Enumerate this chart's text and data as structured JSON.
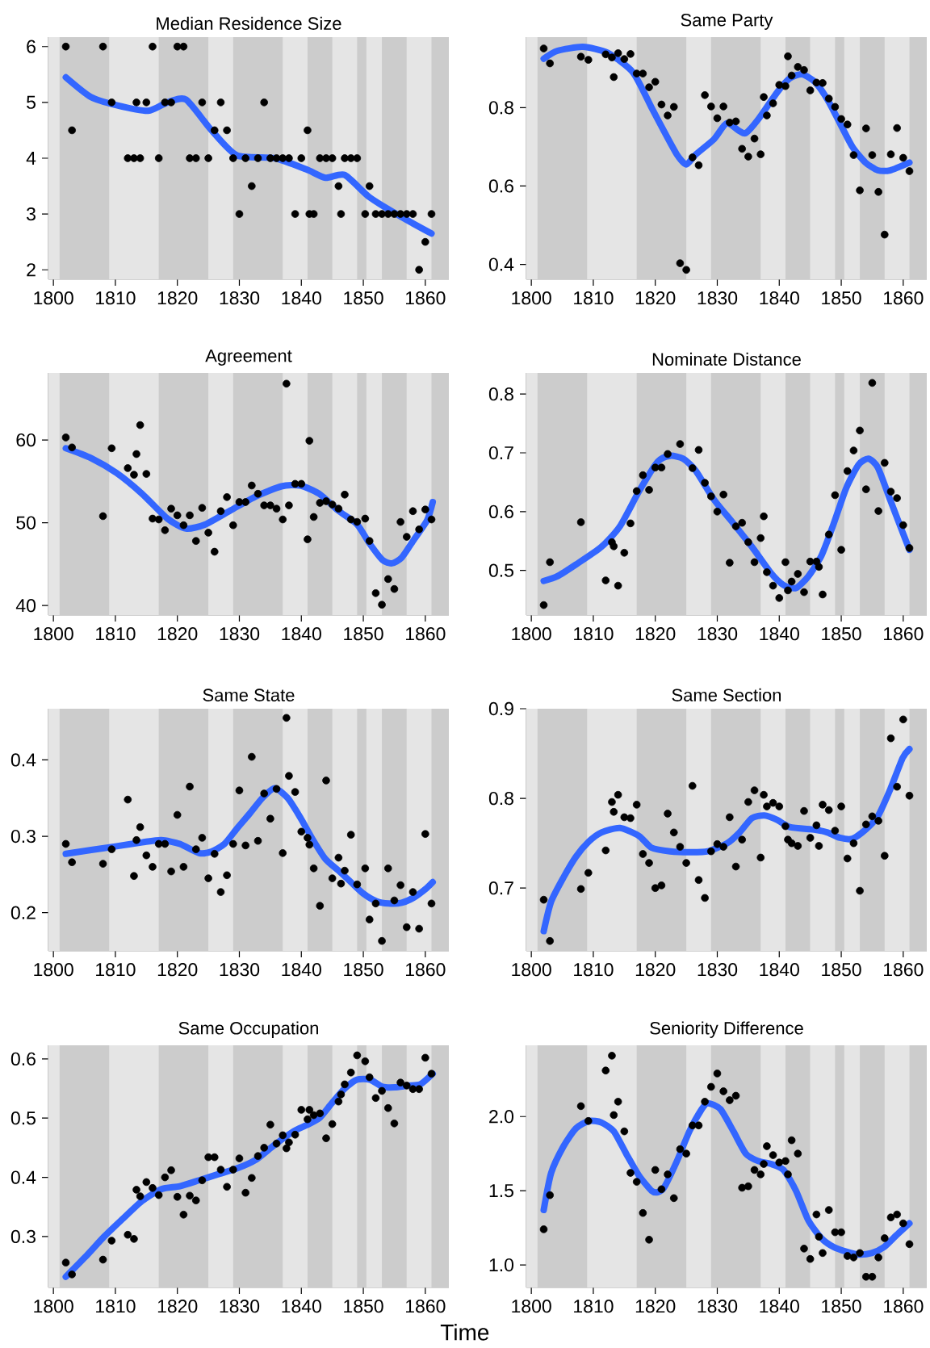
{
  "chart_data": [
    {
      "type": "scatter",
      "title": "Median Residence Size",
      "xlim": [
        1799.2,
        1863.8
      ],
      "ylim": [
        1.83,
        6.17
      ],
      "xticks": [
        1800,
        1810,
        1820,
        1830,
        1840,
        1850,
        1860
      ],
      "yticks": [
        2,
        3,
        4,
        5,
        6
      ],
      "bands": [
        {
          "axis": "x",
          "from": 1801,
          "to": 1809,
          "color": "#cccccc"
        },
        {
          "axis": "x",
          "from": 1817,
          "to": 1825,
          "color": "#cccccc"
        },
        {
          "axis": "x",
          "from": 1829,
          "to": 1837,
          "color": "#cccccc"
        },
        {
          "axis": "x",
          "from": 1841,
          "to": 1845,
          "color": "#cccccc"
        },
        {
          "axis": "x",
          "from": 1849,
          "to": 1850.5,
          "color": "#cccccc"
        },
        {
          "axis": "x",
          "from": 1853,
          "to": 1857,
          "color": "#cccccc"
        },
        {
          "axis": "x",
          "from": 1861,
          "to": 1863.8,
          "color": "#cccccc"
        }
      ],
      "series": [
        {
          "type": "scatter",
          "color": "#000000",
          "marker": "circle",
          "x": [
            1802,
            1803,
            1808,
            1809.4,
            1812,
            1813,
            1813.4,
            1814,
            1815,
            1816,
            1817,
            1818,
            1819,
            1820,
            1821,
            1822,
            1823,
            1824,
            1825,
            1826,
            1827,
            1828,
            1829,
            1830,
            1831,
            1832,
            1833,
            1834,
            1835,
            1836,
            1837,
            1838,
            1839,
            1840,
            1841,
            1841.3,
            1842,
            1843,
            1844,
            1845,
            1846,
            1846.4,
            1847,
            1848,
            1849,
            1850.3,
            1851,
            1852,
            1853,
            1854,
            1855,
            1856,
            1857,
            1858,
            1859,
            1860,
            1861
          ],
          "values": [
            6,
            4.5,
            6,
            5,
            4,
            4,
            5,
            4,
            5,
            6,
            4,
            5,
            5,
            6,
            6,
            4,
            4,
            5,
            4,
            4.5,
            5,
            4.5,
            4,
            3,
            4,
            3.5,
            4,
            5,
            4,
            4,
            4,
            4,
            3,
            4,
            4.5,
            3,
            3,
            4,
            4,
            4,
            3.5,
            3,
            4,
            4,
            4,
            3,
            3.5,
            3,
            3,
            3,
            3,
            3,
            3,
            3,
            2,
            2.5,
            3
          ]
        },
        {
          "type": "line",
          "color": "#3366ff",
          "x": [
            1802,
            1806,
            1810.2,
            1815.3,
            1818.4,
            1821.4,
            1825.5,
            1829.6,
            1835.7,
            1840.8,
            1843.9,
            1847,
            1851,
            1856.1,
            1861
          ],
          "values": [
            5.45,
            5.1,
            4.95,
            4.85,
            5.0,
            5.05,
            4.5,
            4.05,
            4.0,
            3.8,
            3.65,
            3.7,
            3.3,
            2.95,
            2.65
          ]
        }
      ]
    },
    {
      "type": "scatter",
      "title": "Same Party",
      "xlim": [
        1799.2,
        1863.8
      ],
      "ylim": [
        0.362,
        0.98
      ],
      "xticks": [
        1800,
        1810,
        1820,
        1830,
        1840,
        1850,
        1860
      ],
      "yticks": [
        0.4,
        0.6,
        0.8
      ],
      "bands": [
        {
          "axis": "x",
          "from": 1801,
          "to": 1809,
          "color": "#cccccc"
        },
        {
          "axis": "x",
          "from": 1817,
          "to": 1825,
          "color": "#cccccc"
        },
        {
          "axis": "x",
          "from": 1829,
          "to": 1837,
          "color": "#cccccc"
        },
        {
          "axis": "x",
          "from": 1841,
          "to": 1845,
          "color": "#cccccc"
        },
        {
          "axis": "x",
          "from": 1849,
          "to": 1850.5,
          "color": "#cccccc"
        },
        {
          "axis": "x",
          "from": 1853,
          "to": 1857,
          "color": "#cccccc"
        },
        {
          "axis": "x",
          "from": 1861,
          "to": 1863.8,
          "color": "#cccccc"
        }
      ],
      "series": [
        {
          "type": "scatter",
          "color": "#000000",
          "marker": "circle",
          "x": [
            1802,
            1803,
            1808,
            1809.2,
            1812,
            1813,
            1813.3,
            1814,
            1815,
            1816,
            1817,
            1818,
            1819,
            1820,
            1821,
            1822,
            1823,
            1824,
            1825,
            1826,
            1827,
            1828,
            1829,
            1830,
            1831,
            1832,
            1833,
            1834,
            1835,
            1836,
            1837,
            1837.5,
            1838,
            1839,
            1840,
            1841,
            1841.4,
            1842,
            1843,
            1844,
            1845,
            1846,
            1847,
            1848,
            1849,
            1850,
            1851,
            1852,
            1853,
            1854,
            1855,
            1856,
            1857,
            1858,
            1859,
            1860,
            1861
          ],
          "values": [
            0.951,
            0.913,
            0.93,
            0.922,
            0.936,
            0.928,
            0.878,
            0.939,
            0.924,
            0.937,
            0.887,
            0.887,
            0.852,
            0.866,
            0.808,
            0.78,
            0.802,
            0.403,
            0.386,
            0.673,
            0.653,
            0.832,
            0.803,
            0.773,
            0.803,
            0.762,
            0.765,
            0.695,
            0.675,
            0.721,
            0.681,
            0.827,
            0.78,
            0.811,
            0.858,
            0.855,
            0.931,
            0.882,
            0.904,
            0.896,
            0.844,
            0.864,
            0.863,
            0.823,
            0.802,
            0.771,
            0.757,
            0.679,
            0.589,
            0.747,
            0.679,
            0.585,
            0.476,
            0.681,
            0.748,
            0.672,
            0.638
          ]
        },
        {
          "type": "line",
          "color": "#3366ff",
          "x": [
            1802,
            1804.2,
            1808.3,
            1812.3,
            1816.4,
            1819.4,
            1821.4,
            1823.5,
            1825,
            1826.5,
            1829.5,
            1831.5,
            1833.6,
            1834.6,
            1836.6,
            1839.7,
            1841.7,
            1843.7,
            1845.8,
            1847.8,
            1849.8,
            1851.8,
            1853.9,
            1855.9,
            1857.9,
            1861
          ],
          "values": [
            0.925,
            0.945,
            0.955,
            0.94,
            0.89,
            0.8,
            0.74,
            0.68,
            0.655,
            0.68,
            0.72,
            0.76,
            0.74,
            0.735,
            0.77,
            0.84,
            0.875,
            0.885,
            0.865,
            0.82,
            0.76,
            0.7,
            0.66,
            0.64,
            0.64,
            0.66
          ]
        }
      ]
    },
    {
      "type": "scatter",
      "title": "Agreement",
      "xlim": [
        1799.2,
        1863.8
      ],
      "ylim": [
        38.85,
        68.1
      ],
      "xticks": [
        1800,
        1810,
        1820,
        1830,
        1840,
        1850,
        1860
      ],
      "yticks": [
        40,
        50,
        60
      ],
      "bands": [
        {
          "axis": "x",
          "from": 1801,
          "to": 1809,
          "color": "#cccccc"
        },
        {
          "axis": "x",
          "from": 1817,
          "to": 1825,
          "color": "#cccccc"
        },
        {
          "axis": "x",
          "from": 1829,
          "to": 1837,
          "color": "#cccccc"
        },
        {
          "axis": "x",
          "from": 1841,
          "to": 1845,
          "color": "#cccccc"
        },
        {
          "axis": "x",
          "from": 1849,
          "to": 1850.5,
          "color": "#cccccc"
        },
        {
          "axis": "x",
          "from": 1853,
          "to": 1857,
          "color": "#cccccc"
        },
        {
          "axis": "x",
          "from": 1861,
          "to": 1863.8,
          "color": "#cccccc"
        }
      ],
      "series": [
        {
          "type": "scatter",
          "color": "#000000",
          "marker": "circle",
          "x": [
            1802,
            1803,
            1808,
            1809.4,
            1812,
            1813,
            1813.4,
            1814,
            1815,
            1816,
            1817,
            1818,
            1819,
            1820,
            1821,
            1822,
            1823,
            1824,
            1825,
            1826,
            1827,
            1828,
            1829,
            1830,
            1831,
            1832,
            1833,
            1834,
            1835,
            1836,
            1837,
            1837.6,
            1838,
            1839,
            1840,
            1841,
            1841.3,
            1842,
            1843,
            1844,
            1845,
            1846,
            1847,
            1848,
            1849,
            1850.3,
            1851,
            1852,
            1853,
            1854,
            1855,
            1856,
            1857,
            1858,
            1859,
            1860,
            1861
          ],
          "values": [
            60.3,
            59.1,
            50.8,
            59.0,
            56.6,
            55.8,
            58.3,
            61.8,
            55.9,
            50.5,
            50.4,
            49.1,
            51.7,
            50.9,
            49.7,
            50.9,
            47.8,
            51.8,
            48.8,
            46.5,
            51.4,
            53.1,
            49.7,
            52.5,
            52.5,
            54.5,
            53.5,
            52.1,
            52.1,
            51.7,
            50.4,
            66.8,
            52.1,
            54.7,
            54.7,
            48.0,
            59.9,
            50.7,
            52.4,
            52.6,
            52.2,
            51.7,
            53.4,
            50.4,
            50.1,
            50.5,
            47.8,
            41.5,
            40.1,
            43.2,
            42.0,
            50.1,
            48.3,
            51.4,
            49.2,
            51.6,
            50.4
          ]
        },
        {
          "type": "line",
          "color": "#3366ff",
          "x": [
            1802,
            1806.1,
            1810.2,
            1814.3,
            1818.4,
            1821.4,
            1824.5,
            1828.6,
            1832.7,
            1836.8,
            1839.8,
            1842.9,
            1845.9,
            1849,
            1851,
            1853.1,
            1854.6,
            1856.2,
            1858.2,
            1860.3,
            1861.2
          ],
          "values": [
            59,
            57.8,
            56,
            53.5,
            50.5,
            49.3,
            49.8,
            51.5,
            53.2,
            54.4,
            54.5,
            53.5,
            51.5,
            49.8,
            47.5,
            45.5,
            45.1,
            45.8,
            48,
            50.3,
            52.5
          ]
        }
      ]
    },
    {
      "type": "scatter",
      "title": "Nominate Distance",
      "xlim": [
        1799.2,
        1863.8
      ],
      "ylim": [
        0.424,
        0.836
      ],
      "xticks": [
        1800,
        1810,
        1820,
        1830,
        1840,
        1850,
        1860
      ],
      "yticks": [
        0.5,
        0.6,
        0.7,
        0.8
      ],
      "bands": [
        {
          "axis": "x",
          "from": 1801,
          "to": 1809,
          "color": "#cccccc"
        },
        {
          "axis": "x",
          "from": 1817,
          "to": 1825,
          "color": "#cccccc"
        },
        {
          "axis": "x",
          "from": 1829,
          "to": 1837,
          "color": "#cccccc"
        },
        {
          "axis": "x",
          "from": 1841,
          "to": 1845,
          "color": "#cccccc"
        },
        {
          "axis": "x",
          "from": 1849,
          "to": 1850.5,
          "color": "#cccccc"
        },
        {
          "axis": "x",
          "from": 1853,
          "to": 1857,
          "color": "#cccccc"
        },
        {
          "axis": "x",
          "from": 1861,
          "to": 1863.8,
          "color": "#cccccc"
        }
      ],
      "series": [
        {
          "type": "scatter",
          "color": "#000000",
          "marker": "circle",
          "x": [
            1802,
            1803,
            1808,
            1812,
            1813,
            1813.3,
            1814,
            1815,
            1816,
            1817,
            1818,
            1819,
            1820,
            1821,
            1822,
            1824,
            1826,
            1827,
            1828,
            1829,
            1830,
            1831,
            1832,
            1833,
            1834,
            1835,
            1836,
            1837,
            1837.5,
            1838,
            1839,
            1840,
            1841,
            1841.4,
            1842,
            1843,
            1844,
            1845,
            1846,
            1846.4,
            1847,
            1848,
            1849,
            1850,
            1851,
            1852,
            1853,
            1854,
            1855,
            1856,
            1857,
            1858,
            1859,
            1860,
            1861
          ],
          "values": [
            0.441,
            0.514,
            0.582,
            0.483,
            0.548,
            0.541,
            0.474,
            0.53,
            0.58,
            0.635,
            0.662,
            0.637,
            0.675,
            0.675,
            0.698,
            0.715,
            0.674,
            0.705,
            0.649,
            0.626,
            0.6,
            0.629,
            0.513,
            0.575,
            0.581,
            0.548,
            0.514,
            0.555,
            0.592,
            0.497,
            0.474,
            0.453,
            0.514,
            0.466,
            0.481,
            0.494,
            0.463,
            0.515,
            0.515,
            0.506,
            0.459,
            0.561,
            0.628,
            0.535,
            0.669,
            0.704,
            0.738,
            0.638,
            0.819,
            0.601,
            0.683,
            0.634,
            0.623,
            0.577,
            0.538
          ]
        },
        {
          "type": "line",
          "color": "#3366ff",
          "x": [
            1802,
            1804.2,
            1807.2,
            1811.3,
            1814.3,
            1817.4,
            1820.4,
            1822.4,
            1824.5,
            1826.5,
            1829.5,
            1832.6,
            1835.6,
            1838.7,
            1840.7,
            1842.7,
            1844.7,
            1846.8,
            1848.8,
            1850.8,
            1852.8,
            1854.4,
            1855.9,
            1857.9,
            1859.9,
            1861
          ],
          "values": [
            0.482,
            0.49,
            0.51,
            0.54,
            0.575,
            0.635,
            0.685,
            0.695,
            0.69,
            0.67,
            0.62,
            0.58,
            0.54,
            0.495,
            0.475,
            0.47,
            0.49,
            0.525,
            0.58,
            0.64,
            0.68,
            0.69,
            0.675,
            0.62,
            0.565,
            0.535
          ]
        }
      ]
    },
    {
      "type": "scatter",
      "title": "Same State",
      "xlim": [
        1799.2,
        1863.8
      ],
      "ylim": [
        0.15,
        0.467
      ],
      "xticks": [
        1800,
        1810,
        1820,
        1830,
        1840,
        1850,
        1860
      ],
      "yticks": [
        0.2,
        0.3,
        0.4
      ],
      "bands": [
        {
          "axis": "x",
          "from": 1801,
          "to": 1809,
          "color": "#cccccc"
        },
        {
          "axis": "x",
          "from": 1817,
          "to": 1825,
          "color": "#cccccc"
        },
        {
          "axis": "x",
          "from": 1829,
          "to": 1837,
          "color": "#cccccc"
        },
        {
          "axis": "x",
          "from": 1841,
          "to": 1845,
          "color": "#cccccc"
        },
        {
          "axis": "x",
          "from": 1849,
          "to": 1850.5,
          "color": "#cccccc"
        },
        {
          "axis": "x",
          "from": 1853,
          "to": 1857,
          "color": "#cccccc"
        },
        {
          "axis": "x",
          "from": 1861,
          "to": 1863.8,
          "color": "#cccccc"
        }
      ],
      "series": [
        {
          "type": "scatter",
          "color": "#000000",
          "marker": "circle",
          "x": [
            1802,
            1803,
            1808,
            1809.4,
            1812,
            1813,
            1813.4,
            1814,
            1815,
            1816,
            1817,
            1818,
            1819,
            1820,
            1821,
            1822,
            1823,
            1824,
            1825,
            1826,
            1827,
            1828,
            1829,
            1830,
            1831,
            1832,
            1833,
            1834,
            1835,
            1836,
            1837,
            1837.6,
            1838,
            1839,
            1840,
            1841,
            1841.3,
            1842,
            1843,
            1844,
            1845,
            1846,
            1846.4,
            1847,
            1848,
            1849,
            1850.3,
            1851,
            1852,
            1853,
            1854,
            1855,
            1856,
            1857,
            1858,
            1859,
            1860,
            1861
          ],
          "values": [
            0.29,
            0.266,
            0.264,
            0.283,
            0.348,
            0.248,
            0.295,
            0.312,
            0.275,
            0.26,
            0.29,
            0.29,
            0.254,
            0.328,
            0.26,
            0.365,
            0.283,
            0.298,
            0.245,
            0.277,
            0.227,
            0.249,
            0.29,
            0.36,
            0.288,
            0.404,
            0.294,
            0.356,
            0.323,
            0.362,
            0.278,
            0.455,
            0.379,
            0.358,
            0.306,
            0.298,
            0.289,
            0.258,
            0.209,
            0.373,
            0.245,
            0.272,
            0.238,
            0.255,
            0.302,
            0.237,
            0.258,
            0.191,
            0.212,
            0.163,
            0.258,
            0.216,
            0.236,
            0.181,
            0.227,
            0.179,
            0.303,
            0.212
          ]
        },
        {
          "type": "line",
          "color": "#3366ff",
          "x": [
            1802,
            1806.1,
            1810.2,
            1814.3,
            1817.4,
            1820.4,
            1823.5,
            1825.5,
            1827.6,
            1829.6,
            1831.7,
            1833.7,
            1835.7,
            1837.8,
            1839.8,
            1841.9,
            1843.9,
            1846,
            1848,
            1850,
            1852.1,
            1854.1,
            1856.2,
            1858.2,
            1860.2,
            1861.2
          ],
          "values": [
            0.277,
            0.282,
            0.287,
            0.292,
            0.295,
            0.29,
            0.278,
            0.28,
            0.29,
            0.31,
            0.33,
            0.35,
            0.363,
            0.35,
            0.325,
            0.295,
            0.27,
            0.255,
            0.24,
            0.225,
            0.215,
            0.212,
            0.213,
            0.22,
            0.232,
            0.24
          ]
        }
      ]
    },
    {
      "type": "scatter",
      "title": "Same Section",
      "xlim": [
        1799.2,
        1863.8
      ],
      "ylim": [
        0.63,
        0.9
      ],
      "xticks": [
        1800,
        1810,
        1820,
        1830,
        1840,
        1850,
        1860
      ],
      "yticks": [
        0.7,
        0.8,
        0.9
      ],
      "bands": [
        {
          "axis": "x",
          "from": 1801,
          "to": 1809,
          "color": "#cccccc"
        },
        {
          "axis": "x",
          "from": 1817,
          "to": 1825,
          "color": "#cccccc"
        },
        {
          "axis": "x",
          "from": 1829,
          "to": 1837,
          "color": "#cccccc"
        },
        {
          "axis": "x",
          "from": 1841,
          "to": 1845,
          "color": "#cccccc"
        },
        {
          "axis": "x",
          "from": 1849,
          "to": 1850.5,
          "color": "#cccccc"
        },
        {
          "axis": "x",
          "from": 1853,
          "to": 1857,
          "color": "#cccccc"
        },
        {
          "axis": "x",
          "from": 1861,
          "to": 1863.8,
          "color": "#cccccc"
        }
      ],
      "series": [
        {
          "type": "scatter",
          "color": "#000000",
          "marker": "circle",
          "x": [
            1802,
            1803,
            1808,
            1809.2,
            1812,
            1813,
            1813.3,
            1814,
            1815,
            1816,
            1817,
            1818,
            1819,
            1820,
            1821,
            1822,
            1823,
            1824,
            1825,
            1826,
            1827,
            1828,
            1829,
            1830,
            1831,
            1832,
            1833,
            1834,
            1835,
            1836,
            1837,
            1837.5,
            1838,
            1839,
            1840,
            1841,
            1841.4,
            1842,
            1843,
            1844,
            1845,
            1846,
            1846.4,
            1847,
            1848,
            1849,
            1850,
            1851,
            1852,
            1853,
            1854,
            1855,
            1856,
            1857,
            1858,
            1859,
            1860,
            1861
          ],
          "values": [
            0.687,
            0.641,
            0.699,
            0.717,
            0.742,
            0.796,
            0.785,
            0.804,
            0.779,
            0.778,
            0.793,
            0.738,
            0.728,
            0.7,
            0.703,
            0.783,
            0.762,
            0.746,
            0.728,
            0.814,
            0.709,
            0.689,
            0.741,
            0.749,
            0.746,
            0.779,
            0.724,
            0.754,
            0.796,
            0.809,
            0.734,
            0.804,
            0.791,
            0.795,
            0.791,
            0.769,
            0.754,
            0.75,
            0.747,
            0.786,
            0.756,
            0.77,
            0.747,
            0.793,
            0.787,
            0.764,
            0.791,
            0.733,
            0.75,
            0.697,
            0.771,
            0.78,
            0.775,
            0.736,
            0.867,
            0.813,
            0.888,
            0.803
          ]
        },
        {
          "type": "line",
          "color": "#3366ff",
          "x": [
            1802,
            1803.2,
            1805.2,
            1807.2,
            1809.3,
            1811.3,
            1814.3,
            1817.4,
            1819.4,
            1822.4,
            1825.5,
            1828.5,
            1831.6,
            1833.6,
            1835.6,
            1837.6,
            1839.7,
            1841.7,
            1845.8,
            1847.8,
            1849.8,
            1851.8,
            1853.9,
            1855.9,
            1857.9,
            1859.9,
            1861
          ],
          "values": [
            0.652,
            0.685,
            0.712,
            0.735,
            0.752,
            0.762,
            0.767,
            0.758,
            0.745,
            0.741,
            0.74,
            0.741,
            0.75,
            0.762,
            0.778,
            0.781,
            0.776,
            0.768,
            0.765,
            0.762,
            0.756,
            0.755,
            0.765,
            0.78,
            0.81,
            0.845,
            0.855
          ]
        }
      ]
    },
    {
      "type": "scatter",
      "title": "Same Occupation",
      "xlabel": "Time",
      "xlim": [
        1799.2,
        1863.8
      ],
      "ylim": [
        0.214,
        0.623
      ],
      "xticks": [
        1800,
        1810,
        1820,
        1830,
        1840,
        1850,
        1860
      ],
      "yticks": [
        0.3,
        0.4,
        0.5,
        0.6
      ],
      "bands": [
        {
          "axis": "x",
          "from": 1801,
          "to": 1809,
          "color": "#cccccc"
        },
        {
          "axis": "x",
          "from": 1817,
          "to": 1825,
          "color": "#cccccc"
        },
        {
          "axis": "x",
          "from": 1829,
          "to": 1837,
          "color": "#cccccc"
        },
        {
          "axis": "x",
          "from": 1841,
          "to": 1845,
          "color": "#cccccc"
        },
        {
          "axis": "x",
          "from": 1849,
          "to": 1850.5,
          "color": "#cccccc"
        },
        {
          "axis": "x",
          "from": 1853,
          "to": 1857,
          "color": "#cccccc"
        },
        {
          "axis": "x",
          "from": 1861,
          "to": 1863.8,
          "color": "#cccccc"
        }
      ],
      "series": [
        {
          "type": "scatter",
          "color": "#000000",
          "marker": "circle",
          "x": [
            1802,
            1803,
            1808,
            1809.4,
            1812,
            1813,
            1813.4,
            1814,
            1815,
            1816,
            1817,
            1818,
            1819,
            1820,
            1821,
            1822,
            1823,
            1824,
            1825,
            1826,
            1827,
            1828,
            1829,
            1830,
            1831,
            1832,
            1833,
            1834,
            1835,
            1836,
            1837,
            1837.6,
            1838,
            1839,
            1840,
            1841,
            1841.3,
            1842,
            1843,
            1844,
            1845,
            1846,
            1846.4,
            1847,
            1848,
            1849,
            1850.3,
            1851,
            1852,
            1853,
            1854,
            1855,
            1856,
            1857,
            1858,
            1859,
            1860,
            1861
          ],
          "values": [
            0.256,
            0.236,
            0.261,
            0.293,
            0.303,
            0.296,
            0.379,
            0.368,
            0.392,
            0.382,
            0.37,
            0.4,
            0.412,
            0.367,
            0.337,
            0.369,
            0.361,
            0.395,
            0.434,
            0.434,
            0.413,
            0.384,
            0.413,
            0.432,
            0.374,
            0.399,
            0.436,
            0.45,
            0.489,
            0.457,
            0.471,
            0.449,
            0.459,
            0.472,
            0.514,
            0.498,
            0.514,
            0.505,
            0.508,
            0.466,
            0.49,
            0.528,
            0.54,
            0.557,
            0.577,
            0.606,
            0.596,
            0.569,
            0.534,
            0.546,
            0.517,
            0.491,
            0.56,
            0.555,
            0.549,
            0.549,
            0.602,
            0.575
          ]
        },
        {
          "type": "line",
          "color": "#3366ff",
          "x": [
            1802,
            1805.1,
            1808.2,
            1811.2,
            1814.3,
            1817.4,
            1820.4,
            1823.5,
            1826.5,
            1829.6,
            1832.7,
            1835.7,
            1838.8,
            1840.8,
            1842.9,
            1844.9,
            1847,
            1849,
            1851.1,
            1853.1,
            1855.1,
            1857.2,
            1859.2,
            1861.2
          ],
          "values": [
            0.232,
            0.265,
            0.3,
            0.33,
            0.36,
            0.38,
            0.385,
            0.395,
            0.405,
            0.415,
            0.43,
            0.455,
            0.478,
            0.488,
            0.5,
            0.525,
            0.55,
            0.565,
            0.565,
            0.553,
            0.552,
            0.555,
            0.557,
            0.575
          ]
        }
      ]
    },
    {
      "type": "scatter",
      "title": "Seniority Difference",
      "xlim": [
        1799.2,
        1863.8
      ],
      "ylim": [
        0.848,
        2.48
      ],
      "xticks": [
        1800,
        1810,
        1820,
        1830,
        1840,
        1850,
        1860
      ],
      "yticks": [
        {
          "value": 1,
          "label": "1.0"
        },
        1.5,
        {
          "value": 2,
          "label": "2.0"
        }
      ],
      "bands": [
        {
          "axis": "x",
          "from": 1801,
          "to": 1809,
          "color": "#cccccc"
        },
        {
          "axis": "x",
          "from": 1817,
          "to": 1825,
          "color": "#cccccc"
        },
        {
          "axis": "x",
          "from": 1829,
          "to": 1837,
          "color": "#cccccc"
        },
        {
          "axis": "x",
          "from": 1841,
          "to": 1845,
          "color": "#cccccc"
        },
        {
          "axis": "x",
          "from": 1849,
          "to": 1850.5,
          "color": "#cccccc"
        },
        {
          "axis": "x",
          "from": 1853,
          "to": 1857,
          "color": "#cccccc"
        },
        {
          "axis": "x",
          "from": 1861,
          "to": 1863.8,
          "color": "#cccccc"
        }
      ],
      "series": [
        {
          "type": "scatter",
          "color": "#000000",
          "marker": "circle",
          "x": [
            1802,
            1803,
            1808,
            1809.2,
            1812,
            1813,
            1813.3,
            1814,
            1815,
            1816,
            1817,
            1818,
            1819,
            1820,
            1821,
            1822,
            1823,
            1824,
            1825,
            1826,
            1827,
            1828,
            1829,
            1830,
            1831,
            1832,
            1833,
            1834,
            1835,
            1836,
            1837,
            1837.5,
            1838,
            1839,
            1840,
            1841,
            1841.4,
            1842,
            1843,
            1844,
            1845,
            1846,
            1846.4,
            1847,
            1848,
            1849,
            1850,
            1851,
            1852,
            1853,
            1854,
            1855,
            1856,
            1857,
            1858,
            1859,
            1860,
            1861
          ],
          "values": [
            1.24,
            1.47,
            2.07,
            1.97,
            2.31,
            2.41,
            2.01,
            2.1,
            1.9,
            1.62,
            1.56,
            1.35,
            1.17,
            1.64,
            1.51,
            1.61,
            1.45,
            1.78,
            1.75,
            1.94,
            1.94,
            2.1,
            2.2,
            2.29,
            2.17,
            2.11,
            2.14,
            1.52,
            1.53,
            1.64,
            1.61,
            1.68,
            1.8,
            1.74,
            1.69,
            1.7,
            1.61,
            1.84,
            1.75,
            1.11,
            1.04,
            1.34,
            1.19,
            1.08,
            1.37,
            1.22,
            1.22,
            1.06,
            1.05,
            1.08,
            0.92,
            0.92,
            1.05,
            1.18,
            1.32,
            1.34,
            1.28,
            1.14
          ]
        },
        {
          "type": "line",
          "color": "#3366ff",
          "x": [
            1802,
            1803.2,
            1805.2,
            1807.2,
            1809.3,
            1811.3,
            1813.3,
            1815.3,
            1817.4,
            1819.4,
            1820.4,
            1821.4,
            1823.5,
            1825.5,
            1827.5,
            1828.5,
            1830.5,
            1832.6,
            1834.6,
            1836.6,
            1838.7,
            1840.7,
            1842.7,
            1844.7,
            1846.8,
            1848.8,
            1850.8,
            1852.8,
            1854.9,
            1856.9,
            1858.9,
            1861
          ],
          "values": [
            1.37,
            1.62,
            1.8,
            1.92,
            1.97,
            1.96,
            1.9,
            1.75,
            1.6,
            1.5,
            1.49,
            1.52,
            1.7,
            1.9,
            2.05,
            2.09,
            2.05,
            1.9,
            1.75,
            1.7,
            1.68,
            1.64,
            1.5,
            1.3,
            1.18,
            1.12,
            1.09,
            1.07,
            1.08,
            1.12,
            1.2,
            1.28
          ]
        }
      ]
    }
  ]
}
